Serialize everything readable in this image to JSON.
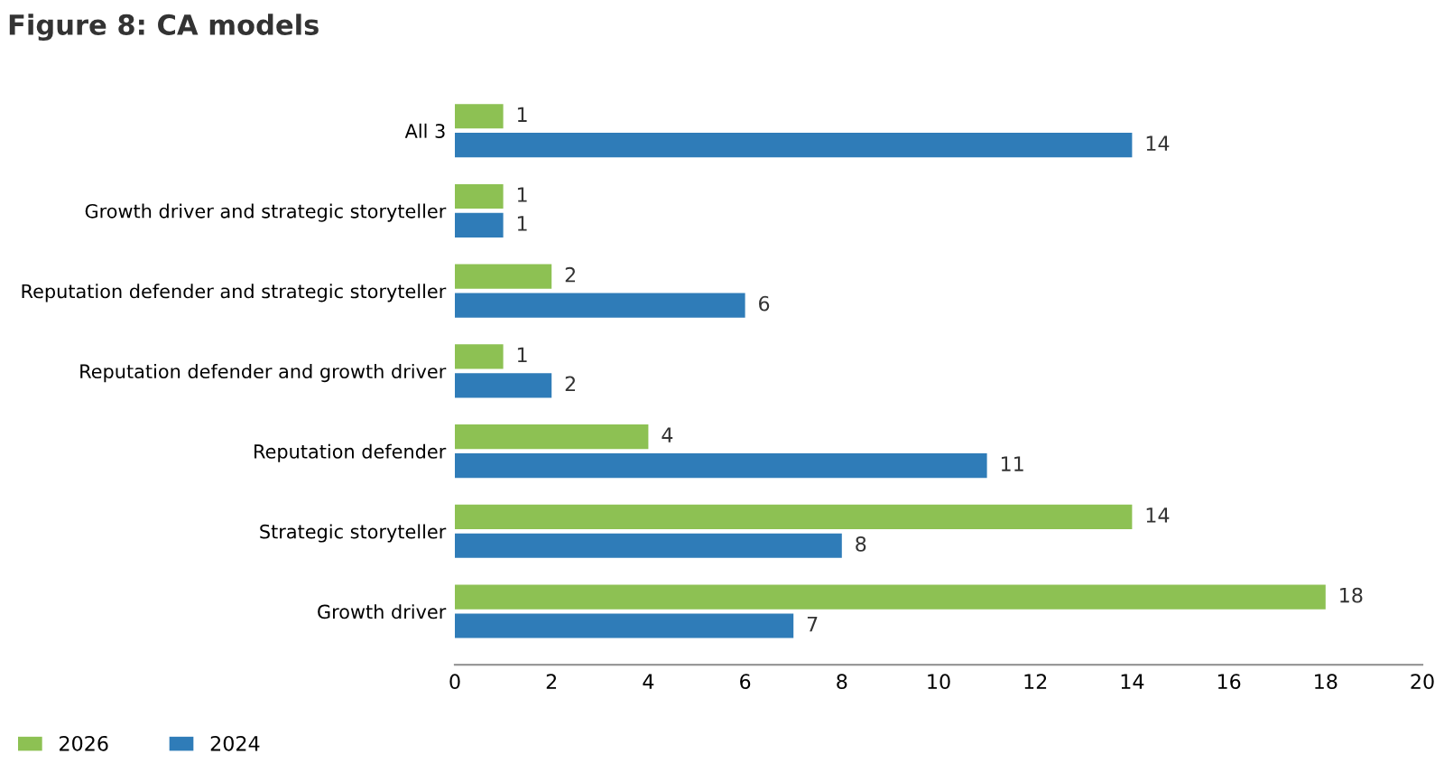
{
  "chart_data": {
    "type": "bar",
    "orientation": "horizontal",
    "title": "Figure 8: CA models",
    "categories": [
      "All 3",
      "Growth driver and strategic storyteller",
      "Reputation defender and strategic storyteller",
      "Reputation defender and growth driver",
      "Reputation defender",
      "Strategic storyteller",
      "Growth driver"
    ],
    "series": [
      {
        "name": "2026",
        "color": "#8dc153",
        "values": [
          1,
          1,
          2,
          1,
          4,
          14,
          18
        ]
      },
      {
        "name": "2024",
        "color": "#2f7cb8",
        "values": [
          14,
          1,
          6,
          2,
          11,
          8,
          7
        ]
      }
    ],
    "xlim": [
      0,
      20
    ],
    "xticks": [
      0,
      2,
      4,
      6,
      8,
      10,
      12,
      14,
      16,
      18,
      20
    ],
    "grid": false,
    "legend": "bottom left",
    "data_labels": true
  }
}
